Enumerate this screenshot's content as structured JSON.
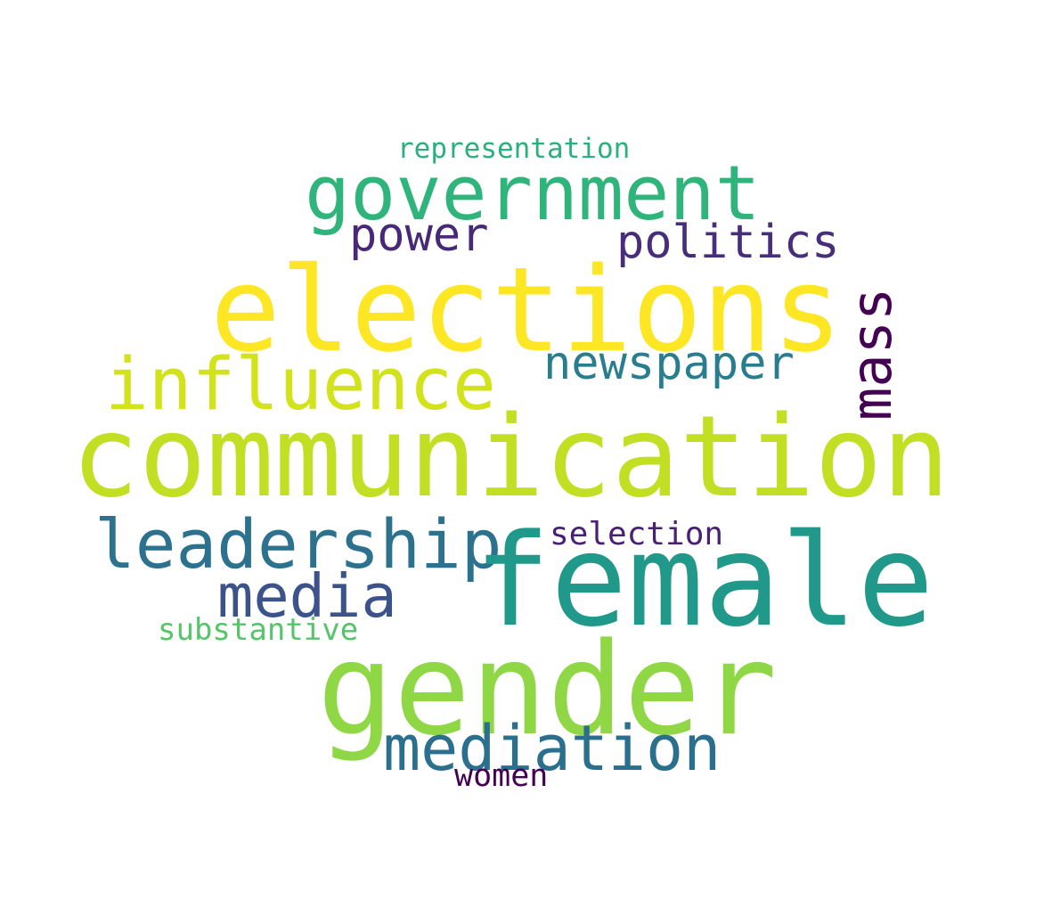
{
  "words": {
    "elections": {
      "text": "elections",
      "color": "#fde725"
    },
    "communication": {
      "text": "communication",
      "color": "#c2df23"
    },
    "female": {
      "text": "female",
      "color": "#21998a"
    },
    "gender": {
      "text": "gender",
      "color": "#8fd744"
    },
    "government": {
      "text": "government",
      "color": "#2fb47c"
    },
    "influence": {
      "text": "influence",
      "color": "#d2e21b"
    },
    "leadership": {
      "text": "leadership",
      "color": "#2c728e"
    },
    "mediation": {
      "text": "mediation",
      "color": "#2b6f8e"
    },
    "media": {
      "text": "media",
      "color": "#3b528b"
    },
    "newspaper": {
      "text": "newspaper",
      "color": "#287d8e"
    },
    "politics": {
      "text": "politics",
      "color": "#472d7b"
    },
    "power": {
      "text": "power",
      "color": "#482878"
    },
    "mass": {
      "text": "mass",
      "color": "#440154"
    },
    "representation": {
      "text": "representation",
      "color": "#2ab07f"
    },
    "selection": {
      "text": "selection",
      "color": "#482173"
    },
    "substantive": {
      "text": "substantive",
      "color": "#54c568"
    },
    "women": {
      "text": "women",
      "color": "#440154"
    }
  }
}
